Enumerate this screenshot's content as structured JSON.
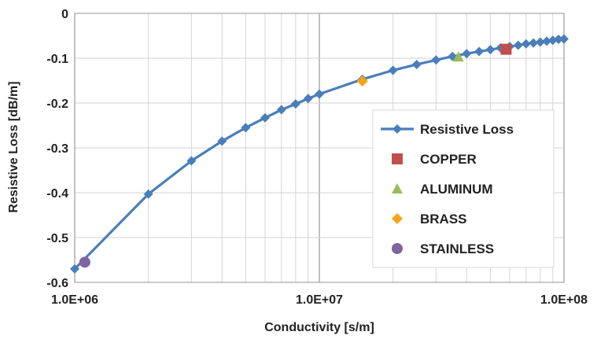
{
  "chart_data": {
    "type": "line",
    "xscale": "log",
    "xlim": [
      1000000,
      100000000
    ],
    "ylim": [
      -0.6,
      0
    ],
    "xlabel": "Conductivity [s/m]",
    "ylabel": "Resistive Loss [dB/m]",
    "x_tick_labels": [
      "1.0E+06",
      "1.0E+07",
      "1.0E+08"
    ],
    "y_tick_labels": [
      "0",
      "-0.1",
      "-0.2",
      "-0.3",
      "-0.4",
      "-0.5",
      "-0.6"
    ],
    "grid": true,
    "legend_position": "right",
    "series": [
      {
        "name": "Resistive Loss",
        "color": "#4a7ebb",
        "marker": "diamond",
        "line": true,
        "points": [
          [
            1000000,
            -0.57
          ],
          [
            2000000,
            -0.403
          ],
          [
            3000000,
            -0.329
          ],
          [
            4000000,
            -0.285
          ],
          [
            5000000,
            -0.255
          ],
          [
            6000000,
            -0.233
          ],
          [
            7000000,
            -0.215
          ],
          [
            8000000,
            -0.202
          ],
          [
            9000000,
            -0.19
          ],
          [
            10000000,
            -0.18
          ],
          [
            15000000,
            -0.147
          ],
          [
            20000000,
            -0.127
          ],
          [
            25000000,
            -0.114
          ],
          [
            30000000,
            -0.104
          ],
          [
            35000000,
            -0.096
          ],
          [
            40000000,
            -0.09
          ],
          [
            45000000,
            -0.085
          ],
          [
            50000000,
            -0.081
          ],
          [
            55000000,
            -0.077
          ],
          [
            60000000,
            -0.074
          ],
          [
            65000000,
            -0.071
          ],
          [
            70000000,
            -0.068
          ],
          [
            75000000,
            -0.066
          ],
          [
            80000000,
            -0.064
          ],
          [
            85000000,
            -0.062
          ],
          [
            90000000,
            -0.06
          ],
          [
            95000000,
            -0.058
          ],
          [
            100000000,
            -0.057
          ]
        ]
      },
      {
        "name": "COPPER",
        "color": "#c0504d",
        "marker": "square",
        "line": false,
        "points": [
          [
            58000000,
            -0.08
          ]
        ]
      },
      {
        "name": "ALUMINUM",
        "color": "#9bbb59",
        "marker": "triangle",
        "line": false,
        "points": [
          [
            37000000,
            -0.097
          ]
        ]
      },
      {
        "name": "BRASS",
        "color": "#f7a51c",
        "marker": "diamond",
        "line": false,
        "points": [
          [
            15000000,
            -0.151
          ]
        ]
      },
      {
        "name": "STAINLESS",
        "color": "#8064a2",
        "marker": "circle",
        "line": false,
        "points": [
          [
            1100000,
            -0.555
          ]
        ]
      }
    ]
  }
}
